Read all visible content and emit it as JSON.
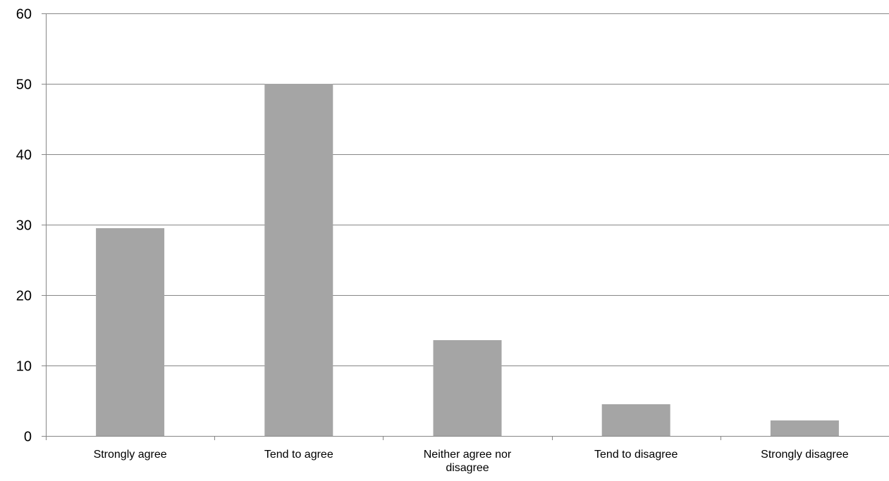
{
  "chart_data": {
    "type": "bar",
    "title": "",
    "xlabel": "",
    "ylabel": "",
    "ylim": [
      0,
      60
    ],
    "yticks": [
      0,
      10,
      20,
      30,
      40,
      50,
      60
    ],
    "grid": true,
    "categories": [
      [
        "Strongly agree"
      ],
      [
        "Tend to agree"
      ],
      [
        "Neither agree nor",
        "disagree"
      ],
      [
        "Tend to disagree"
      ],
      [
        "Strongly disagree"
      ]
    ],
    "values": [
      29.5,
      50,
      13.6,
      4.5,
      2.2
    ],
    "colors": {
      "bar": "#a5a5a5",
      "grid": "#878787",
      "axis": "#878787"
    }
  }
}
